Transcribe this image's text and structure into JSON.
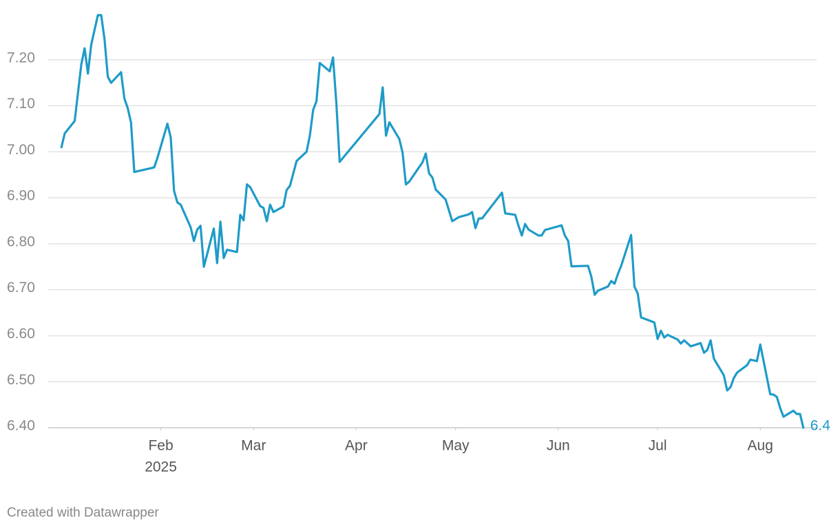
{
  "chart_data": {
    "type": "line",
    "x": [
      1,
      2,
      5,
      7,
      8,
      9,
      10,
      12,
      13,
      14,
      15,
      16,
      19,
      20,
      21,
      22,
      23,
      29,
      30,
      33,
      34,
      35,
      36,
      37,
      40,
      41,
      42,
      43,
      44,
      47,
      48,
      49,
      50,
      51,
      54,
      55,
      56,
      57,
      58,
      61,
      62,
      63,
      64,
      65,
      68,
      69,
      70,
      72,
      75,
      76,
      77,
      78,
      79,
      82,
      83,
      84,
      85,
      97,
      98,
      99,
      100,
      103,
      104,
      105,
      106,
      110,
      111,
      112,
      113,
      114,
      117,
      119,
      121,
      124,
      125,
      126,
      127,
      128,
      134,
      135,
      138,
      139,
      140,
      141,
      142,
      145,
      146,
      147,
      152,
      153,
      154,
      155,
      160,
      161,
      162,
      163,
      166,
      167,
      168,
      169,
      170,
      173,
      174,
      175,
      176,
      180,
      181,
      182,
      183,
      184,
      187,
      188,
      189,
      191,
      194,
      195,
      196,
      197,
      198,
      201,
      202,
      203,
      204,
      205,
      208,
      209,
      211,
      212,
      215,
      216,
      217,
      218,
      219,
      222,
      223,
      224,
      225
    ],
    "series": [
      {
        "color": "#1f9bc8",
        "values": [
          7.01,
          7.04,
          7.067,
          7.19,
          7.225,
          7.17,
          7.233,
          7.297,
          7.297,
          7.245,
          7.163,
          7.15,
          7.173,
          7.116,
          7.095,
          7.064,
          6.956,
          6.966,
          6.987,
          7.061,
          7.031,
          6.915,
          6.89,
          6.885,
          6.836,
          6.806,
          6.831,
          6.839,
          6.75,
          6.833,
          6.758,
          6.848,
          6.769,
          6.787,
          6.782,
          6.863,
          6.851,
          6.929,
          6.923,
          6.882,
          6.878,
          6.849,
          6.885,
          6.869,
          6.881,
          6.917,
          6.926,
          6.98,
          7.0,
          7.035,
          7.091,
          7.11,
          7.193,
          7.175,
          7.205,
          7.106,
          6.978,
          7.082,
          7.14,
          7.035,
          7.064,
          7.028,
          6.998,
          6.929,
          6.935,
          6.977,
          6.996,
          6.953,
          6.944,
          6.918,
          6.896,
          6.849,
          6.858,
          6.864,
          6.869,
          6.834,
          6.855,
          6.855,
          6.911,
          6.866,
          6.863,
          6.839,
          6.818,
          6.843,
          6.831,
          6.818,
          6.818,
          6.83,
          6.84,
          6.818,
          6.806,
          6.751,
          6.752,
          6.728,
          6.689,
          6.698,
          6.707,
          6.719,
          6.713,
          6.734,
          6.752,
          6.819,
          6.707,
          6.692,
          6.64,
          6.629,
          6.593,
          6.611,
          6.596,
          6.602,
          6.592,
          6.583,
          6.59,
          6.577,
          6.584,
          6.563,
          6.569,
          6.59,
          6.55,
          6.514,
          6.481,
          6.488,
          6.508,
          6.52,
          6.536,
          6.548,
          6.545,
          6.581,
          6.473,
          6.472,
          6.467,
          6.443,
          6.424,
          6.437,
          6.43,
          6.43,
          6.4
        ]
      }
    ],
    "end_label": true,
    "xlim": [
      -3,
      229
    ],
    "xticks": [
      {
        "value": 31,
        "label": "Feb",
        "sublabel": "2025"
      },
      {
        "value": 59,
        "label": "Mar"
      },
      {
        "value": 90,
        "label": "Apr"
      },
      {
        "value": 120,
        "label": "May"
      },
      {
        "value": 151,
        "label": "Jun"
      },
      {
        "value": 181,
        "label": "Jul"
      },
      {
        "value": 212,
        "label": "Aug"
      }
    ],
    "ylim": [
      6.4,
      7.3
    ],
    "yticks": [
      {
        "value": 6.4,
        "label": "6.40"
      },
      {
        "value": 6.5,
        "label": "6.50"
      },
      {
        "value": 6.6,
        "label": "6.60"
      },
      {
        "value": 6.7,
        "label": "6.70"
      },
      {
        "value": 6.8,
        "label": "6.80"
      },
      {
        "value": 6.9,
        "label": "6.90"
      },
      {
        "value": 7.0,
        "label": "7.00"
      },
      {
        "value": 7.1,
        "label": "7.10"
      },
      {
        "value": 7.2,
        "label": "7.20"
      }
    ],
    "grid": true,
    "credit": "Created with Datawrapper"
  }
}
